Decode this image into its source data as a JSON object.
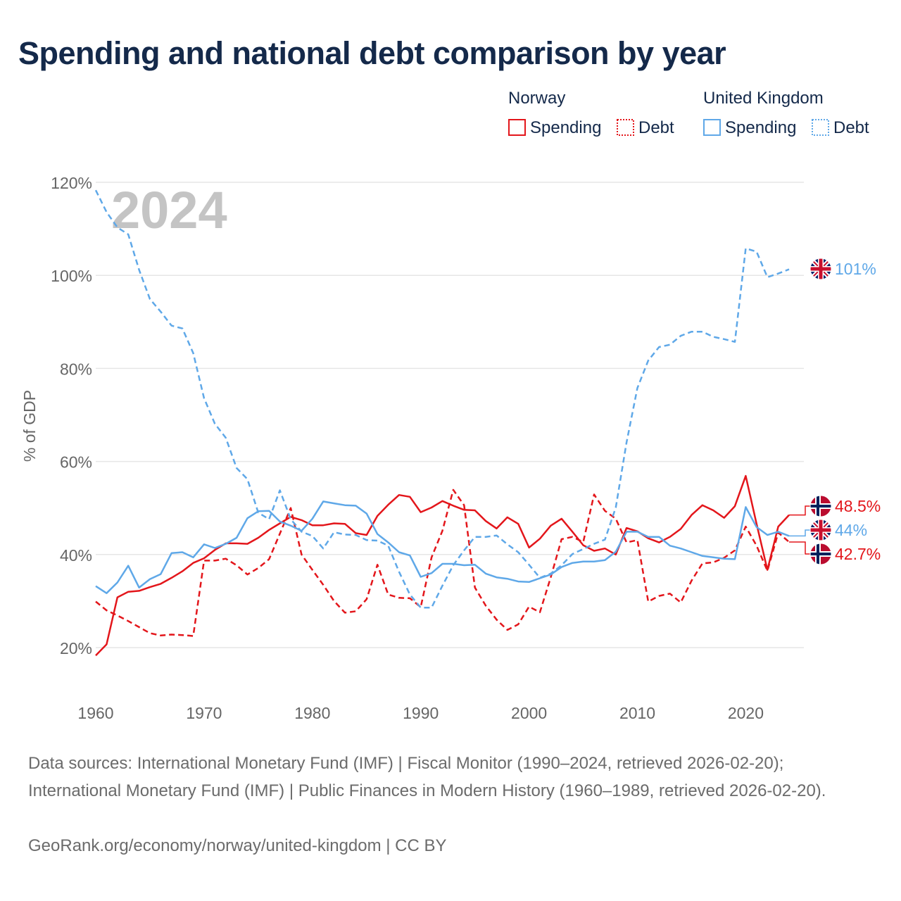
{
  "title": "Spending and national debt comparison by year",
  "footer": {
    "sources": "Data sources: International Monetary Fund (IMF) | Fiscal Monitor (1990–2024, retrieved 2026-02-20); International Monetary Fund (IMF) | Public Finances in Modern History (1960–1989, retrieved 2026-02-20).",
    "credit": "GeoRank.org/economy/norway/united-kingdom | CC BY"
  },
  "colors": {
    "norway": "#e3161b",
    "uk": "#5fa8e8",
    "grid": "#e6e6e6",
    "text": "#14294a",
    "axis": "#666666",
    "year": "#c4c4c4"
  },
  "chart_data": {
    "type": "line",
    "year_label": "2024",
    "ylabel": "% of GDP",
    "xlim": [
      1960,
      2024
    ],
    "ylim": [
      10,
      120
    ],
    "xticks": [
      1960,
      1970,
      1980,
      1990,
      2000,
      2010,
      2020
    ],
    "yticks": [
      20,
      40,
      60,
      80,
      100,
      120
    ],
    "ytick_labels": [
      "20%",
      "40%",
      "60%",
      "80%",
      "100%",
      "120%"
    ],
    "legend": [
      {
        "group": "Norway",
        "items": [
          {
            "label": "Spending",
            "style": "solid"
          },
          {
            "label": "Debt",
            "style": "dotted"
          }
        ]
      },
      {
        "group": "United Kingdom",
        "items": [
          {
            "label": "Spending",
            "style": "solid"
          },
          {
            "label": "Debt",
            "style": "dotted"
          }
        ]
      }
    ],
    "end_labels": [
      {
        "text": "101%",
        "country": "uk",
        "value": 101.3
      },
      {
        "text": "48.5%",
        "country": "norway",
        "value": 48.5
      },
      {
        "text": "44%",
        "country": "uk",
        "value": 44
      },
      {
        "text": "42.7%",
        "country": "norway",
        "value": 42.7
      }
    ],
    "series": [
      {
        "name": "Norway Spending",
        "country": "norway",
        "dash": false,
        "x": [
          1960,
          1961,
          1962,
          1963,
          1964,
          1965,
          1966,
          1967,
          1968,
          1969,
          1970,
          1971,
          1972,
          1973,
          1974,
          1975,
          1976,
          1977,
          1978,
          1979,
          1980,
          1981,
          1982,
          1983,
          1984,
          1985,
          1986,
          1987,
          1988,
          1989,
          1990,
          1991,
          1992,
          1993,
          1994,
          1995,
          1996,
          1997,
          1998,
          1999,
          2000,
          2001,
          2002,
          2003,
          2004,
          2005,
          2006,
          2007,
          2008,
          2009,
          2010,
          2011,
          2012,
          2013,
          2014,
          2015,
          2016,
          2017,
          2018,
          2019,
          2020,
          2021,
          2022,
          2023,
          2024
        ],
        "values": [
          18.3,
          20.7,
          30.8,
          32.0,
          32.2,
          33.0,
          33.7,
          35.0,
          36.4,
          38.2,
          39.2,
          41.0,
          42.4,
          42.4,
          42.3,
          43.6,
          45.3,
          46.7,
          48.1,
          47.4,
          46.3,
          46.3,
          46.7,
          46.6,
          44.6,
          44.2,
          48.3,
          50.7,
          52.8,
          52.4,
          49.1,
          50.1,
          51.5,
          50.5,
          49.6,
          49.5,
          47.2,
          45.6,
          48.0,
          46.6,
          41.5,
          43.4,
          46.2,
          47.7,
          44.9,
          42.0,
          40.8,
          41.3,
          40.0,
          45.7,
          45.0,
          43.5,
          42.6,
          43.8,
          45.5,
          48.5,
          50.6,
          49.5,
          47.9,
          50.4,
          56.9,
          46.6,
          36.7,
          46.0,
          48.5
        ]
      },
      {
        "name": "Norway Debt",
        "country": "norway",
        "dash": true,
        "x": [
          1960,
          1961,
          1962,
          1963,
          1964,
          1965,
          1966,
          1967,
          1968,
          1969,
          1970,
          1971,
          1972,
          1973,
          1974,
          1975,
          1976,
          1977,
          1978,
          1979,
          1980,
          1981,
          1982,
          1983,
          1984,
          1985,
          1986,
          1987,
          1988,
          1989,
          1990,
          1991,
          1992,
          1993,
          1994,
          1995,
          1996,
          1997,
          1998,
          1999,
          2000,
          2001,
          2002,
          2003,
          2004,
          2005,
          2006,
          2007,
          2008,
          2009,
          2010,
          2011,
          2012,
          2013,
          2014,
          2015,
          2016,
          2017,
          2018,
          2019,
          2020,
          2021,
          2022,
          2023,
          2024
        ],
        "values": [
          29.9,
          28.0,
          26.9,
          25.7,
          24.4,
          23.1,
          22.6,
          22.8,
          22.7,
          22.5,
          38.7,
          38.7,
          39.1,
          37.7,
          35.7,
          37.1,
          39.0,
          44.5,
          50.0,
          40.0,
          36.7,
          33.5,
          30.0,
          27.5,
          27.8,
          30.4,
          37.8,
          31.4,
          30.7,
          30.6,
          28.7,
          39.4,
          45.1,
          53.9,
          50.6,
          32.9,
          29.0,
          26.0,
          23.8,
          25.0,
          28.8,
          27.6,
          35.1,
          43.3,
          43.8,
          42.7,
          52.9,
          49.4,
          47.7,
          42.6,
          43.1,
          29.9,
          31.1,
          31.6,
          29.7,
          34.4,
          38.1,
          38.3,
          39.3,
          40.9,
          46.0,
          41.9,
          36.5,
          44.7,
          42.7
        ]
      },
      {
        "name": "United Kingdom Spending",
        "country": "uk",
        "dash": false,
        "x": [
          1960,
          1961,
          1962,
          1963,
          1964,
          1965,
          1966,
          1967,
          1968,
          1969,
          1970,
          1971,
          1972,
          1973,
          1974,
          1975,
          1976,
          1977,
          1978,
          1979,
          1980,
          1981,
          1982,
          1983,
          1984,
          1985,
          1986,
          1987,
          1988,
          1989,
          1990,
          1991,
          1992,
          1993,
          1994,
          1995,
          1996,
          1997,
          1998,
          1999,
          2000,
          2001,
          2002,
          2003,
          2004,
          2005,
          2006,
          2007,
          2008,
          2009,
          2010,
          2011,
          2012,
          2013,
          2014,
          2015,
          2016,
          2017,
          2018,
          2019,
          2020,
          2021,
          2022,
          2023,
          2024
        ],
        "values": [
          33.2,
          31.7,
          34.0,
          37.6,
          32.9,
          34.7,
          35.8,
          40.3,
          40.5,
          39.4,
          42.2,
          41.4,
          42.3,
          43.6,
          47.8,
          49.3,
          49.4,
          47.1,
          46.2,
          45.1,
          47.7,
          51.4,
          51.0,
          50.6,
          50.5,
          48.8,
          44.4,
          42.6,
          40.5,
          39.8,
          35.2,
          36.0,
          38.0,
          38.0,
          37.7,
          37.8,
          35.9,
          35.1,
          34.8,
          34.2,
          34.1,
          34.9,
          35.7,
          37.3,
          38.2,
          38.5,
          38.5,
          38.8,
          40.6,
          44.9,
          44.9,
          43.8,
          43.8,
          41.9,
          41.3,
          40.5,
          39.7,
          39.4,
          39.1,
          39.0,
          50.2,
          45.9,
          44.2,
          44.9,
          44.0
        ]
      },
      {
        "name": "United Kingdom Debt",
        "country": "uk",
        "dash": true,
        "x": [
          1960,
          1961,
          1962,
          1963,
          1964,
          1965,
          1966,
          1967,
          1968,
          1969,
          1970,
          1971,
          1972,
          1973,
          1974,
          1975,
          1976,
          1977,
          1978,
          1979,
          1980,
          1981,
          1982,
          1983,
          1984,
          1985,
          1986,
          1987,
          1988,
          1989,
          1990,
          1991,
          1992,
          1993,
          1994,
          1995,
          1996,
          1997,
          1998,
          1999,
          2000,
          2001,
          2002,
          2003,
          2004,
          2005,
          2006,
          2007,
          2008,
          2009,
          2010,
          2011,
          2012,
          2013,
          2014,
          2015,
          2016,
          2017,
          2018,
          2019,
          2020,
          2021,
          2022,
          2023,
          2024
        ],
        "values": [
          118.3,
          113.6,
          110.3,
          108.8,
          101.2,
          94.9,
          92.2,
          89.2,
          88.6,
          83.3,
          73.6,
          68.1,
          65.1,
          58.6,
          56.2,
          49.0,
          47.6,
          53.8,
          47.6,
          44.9,
          44.0,
          41.3,
          44.8,
          44.3,
          44.2,
          43.1,
          43.0,
          41.9,
          36.3,
          31.4,
          28.6,
          28.6,
          33.3,
          37.7,
          40.9,
          43.8,
          43.8,
          44.1,
          42.2,
          40.5,
          37.8,
          35.0,
          35.9,
          37.7,
          40.1,
          41.2,
          42.3,
          43.2,
          50.1,
          64.1,
          75.8,
          81.7,
          84.6,
          85.1,
          87.0,
          87.9,
          87.9,
          86.8,
          86.3,
          85.7,
          105.8,
          105.1,
          99.6,
          100.4,
          101.3
        ]
      }
    ]
  }
}
